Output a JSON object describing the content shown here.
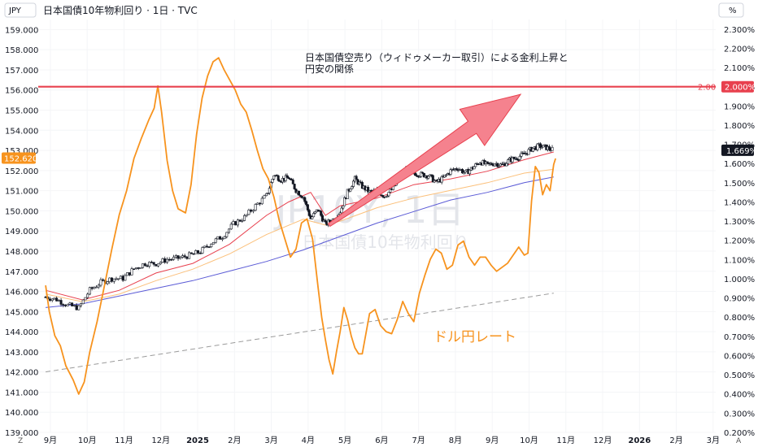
{
  "header": {
    "currency_label": "JPY",
    "title": "日本国債10年物利回り · 1日 · TVC",
    "right_unit": "%",
    "corner_left": "Z",
    "corner_right": "A"
  },
  "watermark": {
    "symbol": "JP10Y, 1日",
    "name": "日本国債10年物利回り"
  },
  "annotations": {
    "note_line1": "日本国債空売り（ウィドゥメーカー取引）による金利上昇と",
    "note_line2": "円安の関係",
    "fx_label": "ドル円レート"
  },
  "colors": {
    "usdjpy": "#F7931E",
    "ma_short": "#E8404E",
    "ma_mid": "#FBC07B",
    "ma_long": "#5B5BD6",
    "level_line": "#E8404E",
    "arrow_fill": "#F5828E",
    "candle": "#131722",
    "trend": "#9a9a9a"
  },
  "chart_data": {
    "type": "line",
    "left_axis": {
      "label": "JPY",
      "ylim": [
        139,
        159.5
      ],
      "ticks": [
        "139.000",
        "140.000",
        "141.000",
        "142.000",
        "143.000",
        "144.000",
        "145.000",
        "146.000",
        "147.000",
        "148.000",
        "149.000",
        "150.000",
        "151.000",
        "152.000",
        "153.000",
        "154.000",
        "155.000",
        "156.000",
        "157.000",
        "158.000",
        "159.000"
      ]
    },
    "right_axis": {
      "label": "%",
      "ylim": [
        0.2,
        2.35
      ],
      "ticks": [
        "0.200%",
        "0.300%",
        "0.400%",
        "0.500%",
        "0.600%",
        "0.700%",
        "0.800%",
        "0.900%",
        "1.000%",
        "1.100%",
        "1.200%",
        "1.300%",
        "1.400%",
        "1.500%",
        "1.600%",
        "1.700%",
        "1.800%",
        "1.900%",
        "2.000%",
        "2.100%",
        "2.200%",
        "2.300%"
      ]
    },
    "x_ticks": [
      {
        "label": "9月",
        "t": 0.13
      },
      {
        "label": "10月",
        "t": 1.13
      },
      {
        "label": "11月",
        "t": 2.13
      },
      {
        "label": "12月",
        "t": 3.13
      },
      {
        "label": "2025",
        "t": 4.13,
        "year": true
      },
      {
        "label": "2月",
        "t": 5.13
      },
      {
        "label": "3月",
        "t": 6.13
      },
      {
        "label": "4月",
        "t": 7.13
      },
      {
        "label": "5月",
        "t": 8.13
      },
      {
        "label": "6月",
        "t": 9.13
      },
      {
        "label": "7月",
        "t": 10.13
      },
      {
        "label": "8月",
        "t": 11.13
      },
      {
        "label": "9月",
        "t": 12.13
      },
      {
        "label": "10月",
        "t": 13.13
      },
      {
        "label": "11月",
        "t": 14.13
      },
      {
        "label": "12月",
        "t": 15.13
      },
      {
        "label": "2026",
        "t": 16.13,
        "year": true
      },
      {
        "label": "2月",
        "t": 17.13
      },
      {
        "label": "3月",
        "t": 18.13
      }
    ],
    "xlim": [
      -0.2,
      18.2
    ],
    "level_line": {
      "value": 2.0,
      "label": "2.00",
      "badge": "2.000%"
    },
    "last_values": {
      "yield": "1.669%",
      "usdjpy": "152.620"
    },
    "series": [
      {
        "name": "ドル円レート",
        "axis": "left",
        "points": [
          [
            0.0,
            146.3
          ],
          [
            0.1,
            145.0
          ],
          [
            0.25,
            143.8
          ],
          [
            0.4,
            143.3
          ],
          [
            0.55,
            142.3
          ],
          [
            0.75,
            141.6
          ],
          [
            0.9,
            140.9
          ],
          [
            1.05,
            141.5
          ],
          [
            1.2,
            143.0
          ],
          [
            1.4,
            144.5
          ],
          [
            1.6,
            146.3
          ],
          [
            1.8,
            148.1
          ],
          [
            2.0,
            149.8
          ],
          [
            2.2,
            151.0
          ],
          [
            2.4,
            152.6
          ],
          [
            2.6,
            153.6
          ],
          [
            2.8,
            154.5
          ],
          [
            2.95,
            155.1
          ],
          [
            3.05,
            156.2
          ],
          [
            3.15,
            154.9
          ],
          [
            3.3,
            152.5
          ],
          [
            3.45,
            151.0
          ],
          [
            3.6,
            150.1
          ],
          [
            3.8,
            149.9
          ],
          [
            3.95,
            151.3
          ],
          [
            4.1,
            153.8
          ],
          [
            4.25,
            155.6
          ],
          [
            4.4,
            156.7
          ],
          [
            4.55,
            157.4
          ],
          [
            4.7,
            157.6
          ],
          [
            4.85,
            157.0
          ],
          [
            5.0,
            156.5
          ],
          [
            5.15,
            156.0
          ],
          [
            5.3,
            155.3
          ],
          [
            5.45,
            154.9
          ],
          [
            5.6,
            154.0
          ],
          [
            5.75,
            153.0
          ],
          [
            5.9,
            152.1
          ],
          [
            6.05,
            151.6
          ],
          [
            6.2,
            150.7
          ],
          [
            6.35,
            149.5
          ],
          [
            6.5,
            148.6
          ],
          [
            6.65,
            147.7
          ],
          [
            6.8,
            148.1
          ],
          [
            6.95,
            149.4
          ],
          [
            7.1,
            149.6
          ],
          [
            7.25,
            148.6
          ],
          [
            7.4,
            146.2
          ],
          [
            7.5,
            144.7
          ],
          [
            7.6,
            143.6
          ],
          [
            7.7,
            142.6
          ],
          [
            7.8,
            141.9
          ],
          [
            7.9,
            143.0
          ],
          [
            8.0,
            144.0
          ],
          [
            8.1,
            145.2
          ],
          [
            8.2,
            144.6
          ],
          [
            8.3,
            143.8
          ],
          [
            8.4,
            143.2
          ],
          [
            8.5,
            142.9
          ],
          [
            8.6,
            142.9
          ],
          [
            8.7,
            143.9
          ],
          [
            8.8,
            144.9
          ],
          [
            8.95,
            145.1
          ],
          [
            9.1,
            144.3
          ],
          [
            9.25,
            144.0
          ],
          [
            9.4,
            143.9
          ],
          [
            9.55,
            144.6
          ],
          [
            9.7,
            145.5
          ],
          [
            9.85,
            144.9
          ],
          [
            10.0,
            144.5
          ],
          [
            10.15,
            145.9
          ],
          [
            10.3,
            146.8
          ],
          [
            10.45,
            147.6
          ],
          [
            10.6,
            148.1
          ],
          [
            10.75,
            147.9
          ],
          [
            10.9,
            147.1
          ],
          [
            11.05,
            147.3
          ],
          [
            11.2,
            148.3
          ],
          [
            11.35,
            148.5
          ],
          [
            11.5,
            147.7
          ],
          [
            11.65,
            147.3
          ],
          [
            11.8,
            147.7
          ],
          [
            11.95,
            147.7
          ],
          [
            12.1,
            147.3
          ],
          [
            12.25,
            147.0
          ],
          [
            12.4,
            147.2
          ],
          [
            12.55,
            147.4
          ],
          [
            12.7,
            147.8
          ],
          [
            12.85,
            148.2
          ],
          [
            13.0,
            147.8
          ],
          [
            13.1,
            147.9
          ],
          [
            13.2,
            150.5
          ],
          [
            13.3,
            152.2
          ],
          [
            13.4,
            151.9
          ],
          [
            13.5,
            150.8
          ],
          [
            13.6,
            151.3
          ],
          [
            13.7,
            151.0
          ],
          [
            13.8,
            152.3
          ],
          [
            13.85,
            152.6
          ]
        ]
      },
      {
        "name": "JP10Y",
        "axis": "right",
        "type": "candlestick",
        "points": [
          [
            0.0,
            0.905
          ],
          [
            0.3,
            0.892
          ],
          [
            0.6,
            0.862
          ],
          [
            0.9,
            0.848
          ],
          [
            1.2,
            0.941
          ],
          [
            1.5,
            0.981
          ],
          [
            1.8,
            1.001
          ],
          [
            2.1,
            1.002
          ],
          [
            2.4,
            1.052
          ],
          [
            2.7,
            1.08
          ],
          [
            3.0,
            1.079
          ],
          [
            3.3,
            1.101
          ],
          [
            3.6,
            1.107
          ],
          [
            3.9,
            1.121
          ],
          [
            4.2,
            1.141
          ],
          [
            4.5,
            1.188
          ],
          [
            4.8,
            1.22
          ],
          [
            5.1,
            1.285
          ],
          [
            5.4,
            1.32
          ],
          [
            5.7,
            1.38
          ],
          [
            6.0,
            1.432
          ],
          [
            6.2,
            1.542
          ],
          [
            6.4,
            1.516
          ],
          [
            6.6,
            1.527
          ],
          [
            6.8,
            1.462
          ],
          [
            7.0,
            1.426
          ],
          [
            7.2,
            1.313
          ],
          [
            7.4,
            1.361
          ],
          [
            7.6,
            1.283
          ],
          [
            7.8,
            1.308
          ],
          [
            8.0,
            1.351
          ],
          [
            8.2,
            1.451
          ],
          [
            8.4,
            1.52
          ],
          [
            8.6,
            1.48
          ],
          [
            8.8,
            1.452
          ],
          [
            9.0,
            1.458
          ],
          [
            9.2,
            1.431
          ],
          [
            9.4,
            1.463
          ],
          [
            9.6,
            1.521
          ],
          [
            9.8,
            1.57
          ],
          [
            10.0,
            1.552
          ],
          [
            10.2,
            1.542
          ],
          [
            10.4,
            1.538
          ],
          [
            10.6,
            1.502
          ],
          [
            10.8,
            1.524
          ],
          [
            11.0,
            1.562
          ],
          [
            11.2,
            1.577
          ],
          [
            11.4,
            1.55
          ],
          [
            11.6,
            1.578
          ],
          [
            11.8,
            1.61
          ],
          [
            12.0,
            1.591
          ],
          [
            12.2,
            1.602
          ],
          [
            12.4,
            1.591
          ],
          [
            12.6,
            1.618
          ],
          [
            12.8,
            1.631
          ],
          [
            13.0,
            1.649
          ],
          [
            13.2,
            1.676
          ],
          [
            13.4,
            1.691
          ],
          [
            13.6,
            1.683
          ],
          [
            13.8,
            1.669
          ]
        ]
      },
      {
        "name": "MA short",
        "axis": "right",
        "points": [
          [
            0.0,
            0.94
          ],
          [
            1.0,
            0.89
          ],
          [
            2.0,
            0.94
          ],
          [
            3.0,
            1.03
          ],
          [
            4.0,
            1.08
          ],
          [
            5.0,
            1.18
          ],
          [
            6.0,
            1.33
          ],
          [
            6.6,
            1.4
          ],
          [
            7.2,
            1.45
          ],
          [
            7.6,
            1.33
          ],
          [
            8.0,
            1.38
          ],
          [
            9.0,
            1.42
          ],
          [
            10.0,
            1.49
          ],
          [
            11.0,
            1.52
          ],
          [
            12.0,
            1.56
          ],
          [
            13.0,
            1.62
          ],
          [
            13.8,
            1.66
          ]
        ]
      },
      {
        "name": "MA mid",
        "axis": "right",
        "points": [
          [
            0.0,
            0.92
          ],
          [
            1.0,
            0.88
          ],
          [
            2.0,
            0.92
          ],
          [
            3.0,
            0.99
          ],
          [
            4.0,
            1.05
          ],
          [
            5.0,
            1.13
          ],
          [
            6.0,
            1.23
          ],
          [
            7.0,
            1.31
          ],
          [
            7.6,
            1.28
          ],
          [
            8.0,
            1.3
          ],
          [
            9.0,
            1.37
          ],
          [
            10.0,
            1.42
          ],
          [
            11.0,
            1.46
          ],
          [
            12.0,
            1.5
          ],
          [
            13.0,
            1.55
          ],
          [
            13.8,
            1.57
          ]
        ]
      },
      {
        "name": "MA long",
        "axis": "right",
        "points": [
          [
            0.0,
            0.85
          ],
          [
            1.0,
            0.87
          ],
          [
            2.0,
            0.91
          ],
          [
            3.0,
            0.95
          ],
          [
            4.0,
            0.99
          ],
          [
            5.0,
            1.04
          ],
          [
            6.0,
            1.09
          ],
          [
            7.0,
            1.15
          ],
          [
            8.0,
            1.22
          ],
          [
            9.0,
            1.29
          ],
          [
            10.0,
            1.35
          ],
          [
            11.0,
            1.41
          ],
          [
            12.0,
            1.45
          ],
          [
            13.0,
            1.5
          ],
          [
            13.8,
            1.53
          ]
        ]
      },
      {
        "name": "trend",
        "axis": "right",
        "style": "dashed",
        "points": [
          [
            0.0,
            0.515
          ],
          [
            13.8,
            0.925
          ]
        ]
      }
    ],
    "arrow": {
      "from": [
        7.7,
        1.28
      ],
      "to": [
        12.9,
        1.96
      ]
    }
  }
}
